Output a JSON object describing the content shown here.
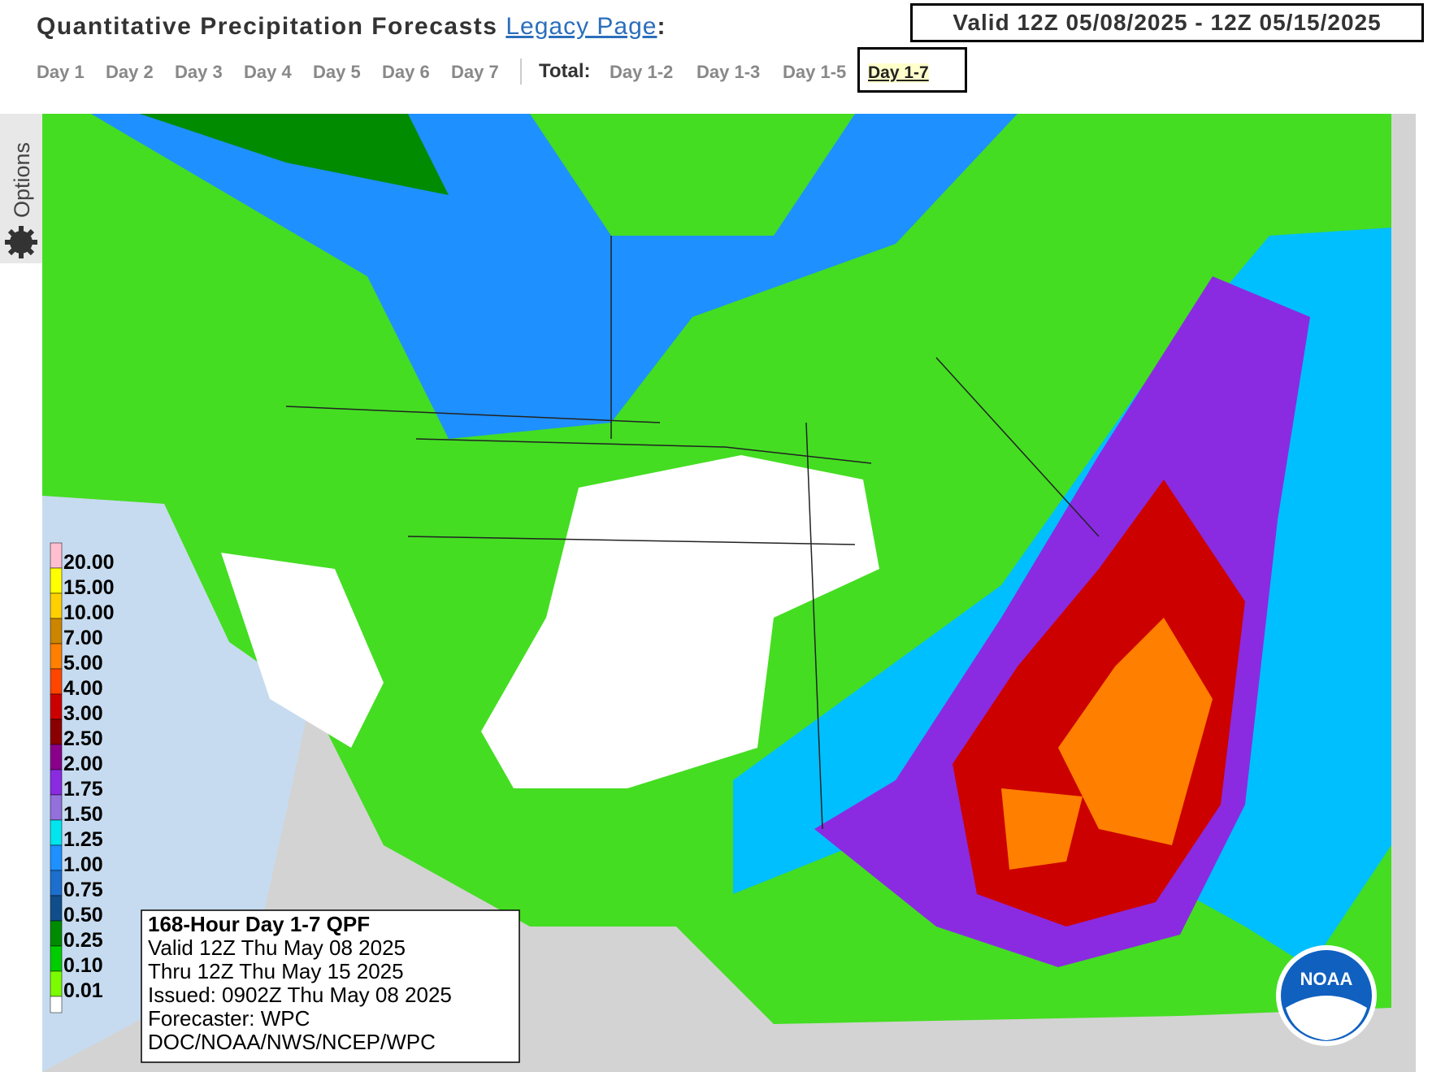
{
  "header": {
    "title": "Quantitative Precipitation Forecasts",
    "legacy_link": "Legacy Page",
    "colon": ":",
    "valid": "Valid 12Z 05/08/2025 - 12Z 05/15/2025"
  },
  "nav": {
    "days": [
      "Day 1",
      "Day 2",
      "Day 3",
      "Day 4",
      "Day 5",
      "Day 6",
      "Day 7"
    ],
    "total_label": "Total:",
    "totals": [
      "Day 1-2",
      "Day 1-3",
      "Day 1-5",
      "Day 1-7"
    ]
  },
  "sidebar": {
    "options": "Options"
  },
  "map": {
    "legend": [
      {
        "label": "20.00",
        "color": "#ffbfd0"
      },
      {
        "label": "15.00",
        "color": "#ffff00"
      },
      {
        "label": "10.00",
        "color": "#ffd000"
      },
      {
        "label": "7.00",
        "color": "#cd8500"
      },
      {
        "label": "5.00",
        "color": "#ff7f00"
      },
      {
        "label": "4.00",
        "color": "#ff4500"
      },
      {
        "label": "3.00",
        "color": "#cd0000"
      },
      {
        "label": "2.50",
        "color": "#8b0000"
      },
      {
        "label": "2.00",
        "color": "#8b008b"
      },
      {
        "label": "1.75",
        "color": "#8a2be2"
      },
      {
        "label": "1.50",
        "color": "#9370db"
      },
      {
        "label": "1.25",
        "color": "#00e5ee"
      },
      {
        "label": "1.00",
        "color": "#1e90ff"
      },
      {
        "label": "0.75",
        "color": "#1c6fcd"
      },
      {
        "label": "0.50",
        "color": "#104e8b"
      },
      {
        "label": "0.25",
        "color": "#008b00"
      },
      {
        "label": "0.10",
        "color": "#00cd00"
      },
      {
        "label": "0.01",
        "color": "#7cfc00"
      }
    ],
    "info": [
      "168-Hour Day 1-7 QPF",
      "Valid 12Z Thu May 08 2025",
      "Thru 12Z Thu May 15 2025",
      "Issued: 0902Z Thu May 08 2025",
      "Forecaster: WPC",
      "DOC/NOAA/NWS/NCEP/WPC"
    ],
    "logo": "NOAA"
  }
}
